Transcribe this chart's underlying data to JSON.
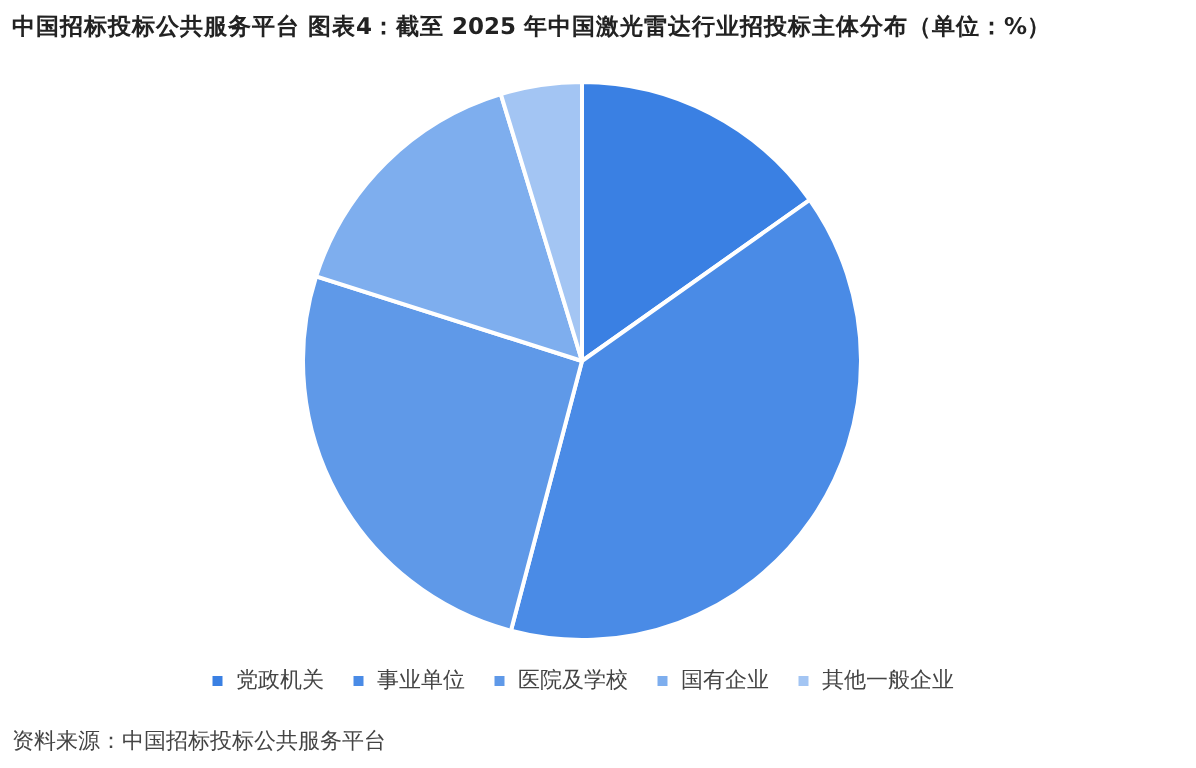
{
  "chart_data": {
    "type": "pie",
    "title": "中国招标投标公共服务平台  图表4：截至 2025 年中国激光雷达行业招投标主体分布（单位：%）",
    "categories": [
      "党政机关",
      "事业单位",
      "医院及学校",
      "国有企业",
      "其他一般企业"
    ],
    "values": [
      15.2,
      38.9,
      25.8,
      15.4,
      4.7
    ],
    "colors": [
      "#3a80e3",
      "#4a8be6",
      "#5f99e8",
      "#7eaeee",
      "#a3c5f3"
    ],
    "legend": "bottom",
    "annotations": [
      "资料来源：中国招标投标公共服务平台"
    ]
  }
}
